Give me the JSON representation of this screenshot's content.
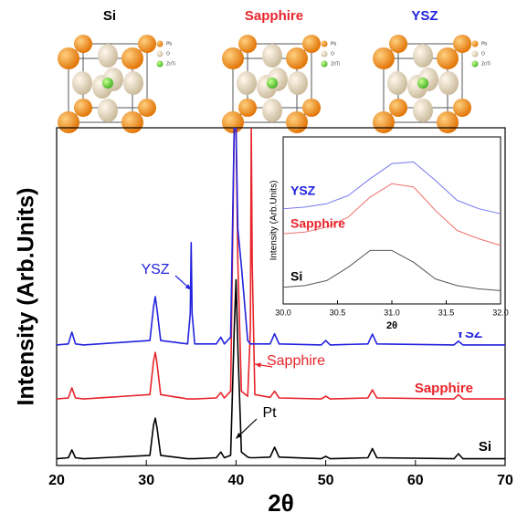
{
  "structures": {
    "labels": [
      "Si",
      "Sapphire",
      "YSZ"
    ],
    "legend": [
      "Pb",
      "O",
      "Zr/Ti"
    ]
  },
  "chart_data": [
    {
      "type": "line",
      "xlabel": "2θ",
      "ylabel": "Intensity (Arb.Units)",
      "xlim": [
        20,
        70
      ],
      "xticks": [
        20,
        30,
        40,
        50,
        60,
        70
      ],
      "ylim": [
        0,
        100
      ],
      "x": [
        20,
        21.3,
        21.7,
        22.1,
        23,
        30.4,
        30.8,
        31.0,
        31.2,
        31.6,
        34.6,
        34.9,
        35.0,
        35.1,
        35.4,
        37.8,
        38.3,
        38.7,
        39.4,
        39.8,
        40.0,
        40.2,
        40.6,
        41.3,
        41.6,
        41.7,
        41.8,
        42.1,
        43.8,
        44.3,
        44.8,
        49.5,
        50,
        50.5,
        54.7,
        55.2,
        55.7,
        64.3,
        64.8,
        65.3,
        70
      ],
      "series": [
        {
          "name": "Si",
          "color": "#000000",
          "values": [
            2,
            2.3,
            4.6,
            2.3,
            2,
            3,
            12,
            14,
            11,
            3,
            2,
            2,
            2,
            2,
            2,
            2.3,
            4,
            2.3,
            3,
            40,
            55,
            35,
            4,
            2.5,
            2.3,
            2.3,
            2.3,
            2.3,
            2.5,
            5.4,
            2.5,
            2,
            2.7,
            2,
            2.3,
            5,
            2.3,
            2,
            3.5,
            2,
            2
          ]
        },
        {
          "name": "Sapphire",
          "color": "#e8242b",
          "values": [
            19.7,
            20,
            23,
            20,
            19.7,
            21,
            31,
            33.5,
            30,
            21,
            19.7,
            19.7,
            19.7,
            19.7,
            19.7,
            20,
            21.6,
            20,
            22,
            100,
            100,
            60,
            22,
            20.5,
            40,
            100,
            60,
            21,
            20.2,
            22,
            20,
            19.7,
            20.5,
            19.7,
            20,
            22.4,
            20,
            19.7,
            21,
            19.7,
            19.7
          ]
        },
        {
          "name": "YSZ",
          "color": "#2222dd",
          "values": [
            35.7,
            36,
            39.5,
            36,
            35.7,
            37,
            47,
            50,
            46,
            37,
            36,
            45,
            66,
            45,
            36,
            36,
            38,
            36,
            38,
            100,
            100,
            70,
            59,
            37,
            36,
            36,
            36,
            36,
            36,
            39,
            36,
            35.7,
            37,
            35.7,
            36,
            38.9,
            36,
            35.7,
            36.8,
            35.7,
            35.7
          ]
        }
      ],
      "annotations": [
        {
          "text": "YSZ",
          "color": "#2222dd"
        },
        {
          "text": "Sapphire",
          "color": "#e8242b"
        },
        {
          "text": "Pt",
          "color": "#000000"
        }
      ]
    },
    {
      "type": "line",
      "xlabel": "2θ",
      "ylabel": "Intensity (Arb.Units)",
      "xlim": [
        30,
        32
      ],
      "ylim": [
        0,
        100
      ],
      "xticks": [
        {
          "value": 30,
          "label": "30.0"
        },
        {
          "value": 30.5,
          "label": "30.5"
        },
        {
          "value": 31,
          "label": "31.0"
        },
        {
          "value": 31.5,
          "label": "31.5"
        },
        {
          "value": 32,
          "label": "32.0"
        }
      ],
      "x": [
        30.0,
        30.2,
        30.4,
        30.6,
        30.8,
        31.0,
        31.2,
        31.4,
        31.6,
        31.8,
        32.0
      ],
      "series": [
        {
          "name": "Si",
          "color": "#555555",
          "values": [
            10,
            11,
            14,
            22,
            32,
            32,
            25,
            15,
            11,
            9,
            8
          ]
        },
        {
          "name": "Sapphire",
          "color": "#f07070",
          "values": [
            42,
            43,
            46,
            52,
            64,
            72,
            70,
            56,
            44,
            39,
            35
          ]
        },
        {
          "name": "YSZ",
          "color": "#7777ee",
          "values": [
            57,
            58,
            60,
            65,
            75,
            84,
            85,
            74,
            62,
            57,
            54
          ]
        }
      ]
    }
  ]
}
